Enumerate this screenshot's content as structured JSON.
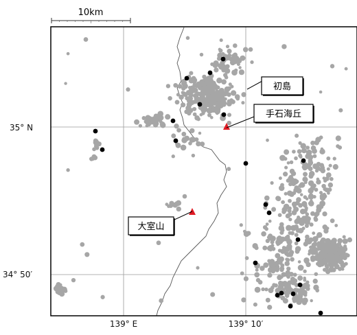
{
  "scale": {
    "label": "10km"
  },
  "axes": {
    "lat_labels": [
      "35° N",
      "34° 50′"
    ],
    "lon_labels": [
      "139° E",
      "139° 10′"
    ]
  },
  "places": {
    "hatsushima": "初島",
    "teishi_kaikyu": "手石海丘",
    "omuroyama": "大室山"
  },
  "colors": {
    "quake_gray": "#a6a6a6",
    "quake_black": "#000000",
    "volcano": "#e01b24",
    "frame": "#000000",
    "grid": "#9a9a9a",
    "coast": "#555555"
  },
  "icons": {
    "volcano": "triangle-icon",
    "quake": "dot"
  }
}
